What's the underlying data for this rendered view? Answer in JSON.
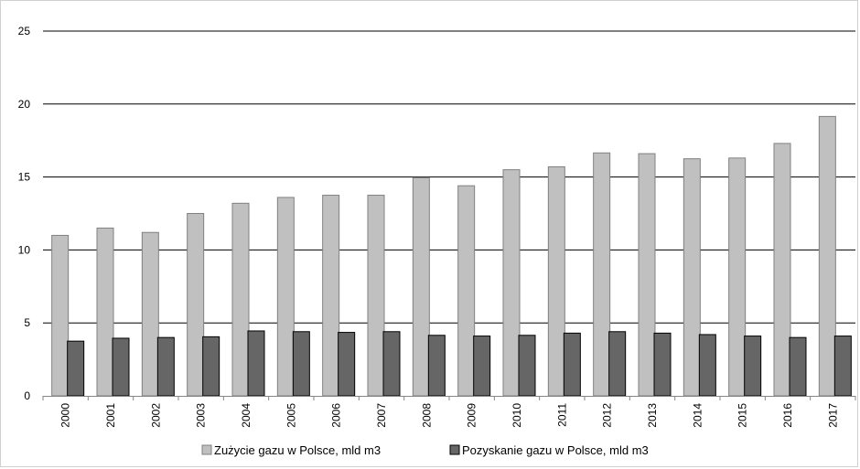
{
  "chart_data": {
    "type": "bar",
    "categories": [
      "2000",
      "2001",
      "2002",
      "2003",
      "2004",
      "2005",
      "2006",
      "2007",
      "2008",
      "2009",
      "2010",
      "2011",
      "2012",
      "2013",
      "2014",
      "2015",
      "2016",
      "2017"
    ],
    "series": [
      {
        "name": "Zużycie gazu w Polsce, mld m3",
        "color": "#c0c0c0",
        "values": [
          11.0,
          11.5,
          11.2,
          12.5,
          13.2,
          13.6,
          13.75,
          13.75,
          14.95,
          14.4,
          15.5,
          15.7,
          16.65,
          16.6,
          16.25,
          16.3,
          17.3,
          19.15
        ]
      },
      {
        "name": "Pozyskanie gazu w Polsce, mld m3",
        "color": "#666666",
        "values": [
          3.75,
          3.95,
          4.0,
          4.05,
          4.45,
          4.4,
          4.35,
          4.4,
          4.15,
          4.1,
          4.15,
          4.3,
          4.4,
          4.3,
          4.2,
          4.1,
          4.0,
          4.1
        ]
      }
    ],
    "yticks": [
      "0",
      "5",
      "10",
      "15",
      "20",
      "25"
    ],
    "ylim": [
      0,
      25
    ],
    "grid": true,
    "legend_position": "bottom-center",
    "title": "",
    "xlabel": "",
    "ylabel": ""
  }
}
